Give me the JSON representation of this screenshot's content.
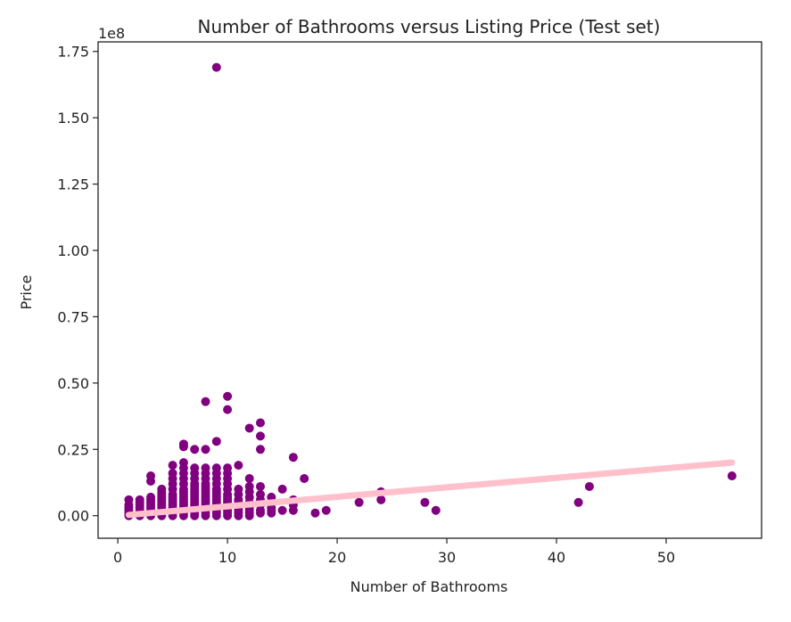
{
  "chart_data": {
    "type": "scatter",
    "title": "Number of Bathrooms versus Listing Price (Test set)",
    "xlabel": "Number of Bathrooms",
    "ylabel": "Price",
    "y_offset_label": "1e8",
    "xlim": [
      -1.8,
      58.7
    ],
    "ylim": [
      -0.085,
      1.786
    ],
    "y_scale_factor": 100000000,
    "x_ticks": [
      0,
      10,
      20,
      30,
      40,
      50
    ],
    "y_ticks": [
      0.0,
      0.25,
      0.5,
      0.75,
      1.0,
      1.25,
      1.5,
      1.75
    ],
    "x_tick_labels": [
      "0",
      "10",
      "20",
      "30",
      "40",
      "50"
    ],
    "y_tick_labels": [
      "0.00",
      "0.25",
      "0.50",
      "0.75",
      "1.00",
      "1.25",
      "1.50",
      "1.75"
    ],
    "grid": false,
    "legend": "none",
    "series": [
      {
        "kind": "scatter",
        "color": "#800080",
        "points": [
          [
            1,
            0.0
          ],
          [
            1,
            0.01
          ],
          [
            1,
            0.02
          ],
          [
            1,
            0.03
          ],
          [
            1,
            0.04
          ],
          [
            1,
            0.06
          ],
          [
            2,
            0.0
          ],
          [
            2,
            0.01
          ],
          [
            2,
            0.02
          ],
          [
            2,
            0.03
          ],
          [
            2,
            0.04
          ],
          [
            2,
            0.05
          ],
          [
            2,
            0.06
          ],
          [
            3,
            0.0
          ],
          [
            3,
            0.01
          ],
          [
            3,
            0.02
          ],
          [
            3,
            0.03
          ],
          [
            3,
            0.04
          ],
          [
            3,
            0.05
          ],
          [
            3,
            0.06
          ],
          [
            3,
            0.07
          ],
          [
            3,
            0.13
          ],
          [
            3,
            0.15
          ],
          [
            4,
            0.0
          ],
          [
            4,
            0.01
          ],
          [
            4,
            0.02
          ],
          [
            4,
            0.03
          ],
          [
            4,
            0.04
          ],
          [
            4,
            0.05
          ],
          [
            4,
            0.06
          ],
          [
            4,
            0.07
          ],
          [
            4,
            0.08
          ],
          [
            4,
            0.09
          ],
          [
            4,
            0.1
          ],
          [
            5,
            0.0
          ],
          [
            5,
            0.01
          ],
          [
            5,
            0.02
          ],
          [
            5,
            0.03
          ],
          [
            5,
            0.04
          ],
          [
            5,
            0.05
          ],
          [
            5,
            0.06
          ],
          [
            5,
            0.07
          ],
          [
            5,
            0.08
          ],
          [
            5,
            0.1
          ],
          [
            5,
            0.12
          ],
          [
            5,
            0.14
          ],
          [
            5,
            0.16
          ],
          [
            5,
            0.19
          ],
          [
            6,
            0.0
          ],
          [
            6,
            0.01
          ],
          [
            6,
            0.02
          ],
          [
            6,
            0.03
          ],
          [
            6,
            0.04
          ],
          [
            6,
            0.05
          ],
          [
            6,
            0.06
          ],
          [
            6,
            0.07
          ],
          [
            6,
            0.08
          ],
          [
            6,
            0.09
          ],
          [
            6,
            0.1
          ],
          [
            6,
            0.12
          ],
          [
            6,
            0.14
          ],
          [
            6,
            0.16
          ],
          [
            6,
            0.18
          ],
          [
            6,
            0.2
          ],
          [
            6,
            0.26
          ],
          [
            6,
            0.27
          ],
          [
            7,
            0.0
          ],
          [
            7,
            0.01
          ],
          [
            7,
            0.02
          ],
          [
            7,
            0.03
          ],
          [
            7,
            0.04
          ],
          [
            7,
            0.05
          ],
          [
            7,
            0.06
          ],
          [
            7,
            0.07
          ],
          [
            7,
            0.08
          ],
          [
            7,
            0.09
          ],
          [
            7,
            0.1
          ],
          [
            7,
            0.11
          ],
          [
            7,
            0.12
          ],
          [
            7,
            0.14
          ],
          [
            7,
            0.16
          ],
          [
            7,
            0.18
          ],
          [
            7,
            0.25
          ],
          [
            8,
            0.0
          ],
          [
            8,
            0.01
          ],
          [
            8,
            0.02
          ],
          [
            8,
            0.03
          ],
          [
            8,
            0.04
          ],
          [
            8,
            0.05
          ],
          [
            8,
            0.06
          ],
          [
            8,
            0.07
          ],
          [
            8,
            0.08
          ],
          [
            8,
            0.09
          ],
          [
            8,
            0.1
          ],
          [
            8,
            0.11
          ],
          [
            8,
            0.12
          ],
          [
            8,
            0.14
          ],
          [
            8,
            0.16
          ],
          [
            8,
            0.18
          ],
          [
            8,
            0.25
          ],
          [
            8,
            0.43
          ],
          [
            9,
            0.0
          ],
          [
            9,
            0.01
          ],
          [
            9,
            0.02
          ],
          [
            9,
            0.03
          ],
          [
            9,
            0.04
          ],
          [
            9,
            0.05
          ],
          [
            9,
            0.06
          ],
          [
            9,
            0.07
          ],
          [
            9,
            0.08
          ],
          [
            9,
            0.09
          ],
          [
            9,
            0.1
          ],
          [
            9,
            0.12
          ],
          [
            9,
            0.14
          ],
          [
            9,
            0.16
          ],
          [
            9,
            0.18
          ],
          [
            9,
            0.28
          ],
          [
            9,
            1.69
          ],
          [
            10,
            0.0
          ],
          [
            10,
            0.01
          ],
          [
            10,
            0.02
          ],
          [
            10,
            0.03
          ],
          [
            10,
            0.04
          ],
          [
            10,
            0.05
          ],
          [
            10,
            0.06
          ],
          [
            10,
            0.07
          ],
          [
            10,
            0.08
          ],
          [
            10,
            0.1
          ],
          [
            10,
            0.12
          ],
          [
            10,
            0.14
          ],
          [
            10,
            0.16
          ],
          [
            10,
            0.18
          ],
          [
            10,
            0.4
          ],
          [
            10,
            0.45
          ],
          [
            11,
            0.0
          ],
          [
            11,
            0.01
          ],
          [
            11,
            0.02
          ],
          [
            11,
            0.03
          ],
          [
            11,
            0.04
          ],
          [
            11,
            0.05
          ],
          [
            11,
            0.06
          ],
          [
            11,
            0.08
          ],
          [
            11,
            0.1
          ],
          [
            11,
            0.19
          ],
          [
            12,
            0.0
          ],
          [
            12,
            0.01
          ],
          [
            12,
            0.02
          ],
          [
            12,
            0.03
          ],
          [
            12,
            0.05
          ],
          [
            12,
            0.07
          ],
          [
            12,
            0.09
          ],
          [
            12,
            0.11
          ],
          [
            12,
            0.14
          ],
          [
            12,
            0.33
          ],
          [
            13,
            0.01
          ],
          [
            13,
            0.02
          ],
          [
            13,
            0.04
          ],
          [
            13,
            0.06
          ],
          [
            13,
            0.08
          ],
          [
            13,
            0.11
          ],
          [
            13,
            0.25
          ],
          [
            13,
            0.3
          ],
          [
            13,
            0.35
          ],
          [
            14,
            0.01
          ],
          [
            14,
            0.02
          ],
          [
            14,
            0.03
          ],
          [
            14,
            0.07
          ],
          [
            15,
            0.02
          ],
          [
            15,
            0.1
          ],
          [
            16,
            0.02
          ],
          [
            16,
            0.04
          ],
          [
            16,
            0.06
          ],
          [
            16,
            0.22
          ],
          [
            17,
            0.14
          ],
          [
            18,
            0.01
          ],
          [
            19,
            0.02
          ],
          [
            22,
            0.05
          ],
          [
            24,
            0.06
          ],
          [
            24,
            0.09
          ],
          [
            28,
            0.05
          ],
          [
            29,
            0.02
          ],
          [
            42,
            0.05
          ],
          [
            43,
            0.11
          ],
          [
            56,
            0.15
          ]
        ]
      },
      {
        "kind": "line",
        "color": "#ffc0cb",
        "x": [
          1,
          56
        ],
        "y": [
          0.003,
          0.2
        ]
      }
    ]
  }
}
